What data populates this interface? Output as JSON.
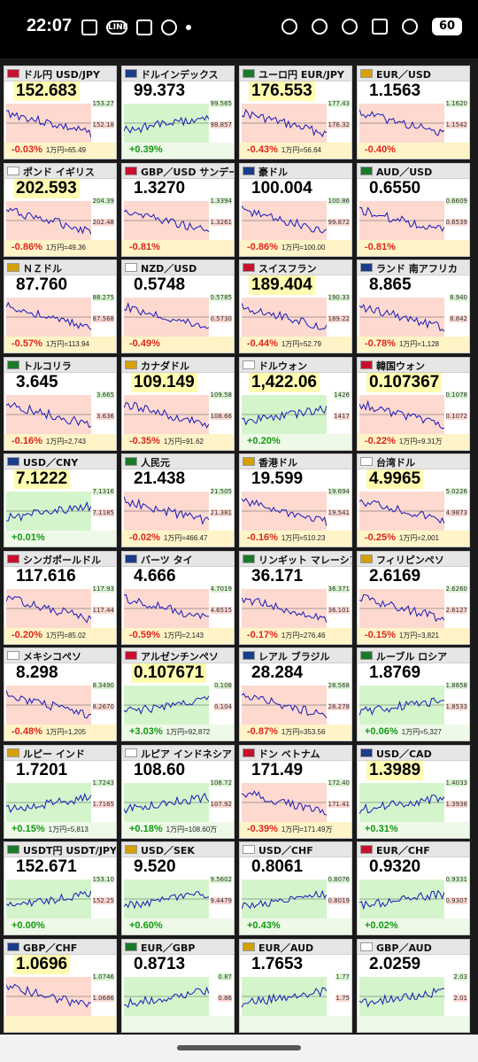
{
  "status_bar": {
    "time": "22:07",
    "battery": "60",
    "left_icons": [
      "news-icon",
      "line-icon",
      "copy-icon",
      "jaion-icon",
      "dot-icon"
    ],
    "right_icons": [
      "location-icon",
      "mute-icon",
      "dnd-icon",
      "signal-icon",
      "wifi-icon"
    ]
  },
  "colors": {
    "down": "#e0241a",
    "up": "#109a10",
    "highlight": "#fffbb0"
  },
  "tiles": [
    {
      "name": "ドル円 USD/JPY",
      "price": "152.683",
      "highlight": true,
      "change": "-0.03%",
      "sub": "1万円=65.49",
      "trend": "down",
      "hi": "153.27",
      "lo": "152.18"
    },
    {
      "name": "ドルインデックス",
      "price": "99.373",
      "highlight": false,
      "change": "+0.39%",
      "sub": "",
      "trend": "up",
      "hi": "99.565",
      "lo": "98.857"
    },
    {
      "name": "ユーロ円 EUR/JPY",
      "price": "176.553",
      "highlight": true,
      "change": "-0.43%",
      "sub": "1万円=56.64",
      "trend": "down",
      "hi": "177.43",
      "lo": "176.32"
    },
    {
      "name": "EUR／USD",
      "price": "1.1563",
      "highlight": false,
      "change": "-0.40%",
      "sub": "",
      "trend": "down",
      "hi": "1.1620",
      "lo": "1.1542"
    },
    {
      "name": "ポンド イギリス",
      "price": "202.593",
      "highlight": true,
      "change": "-0.86%",
      "sub": "1万円=49.36",
      "trend": "down",
      "hi": "204.39",
      "lo": "202.48"
    },
    {
      "name": "GBP／USD サンデー",
      "price": "1.3270",
      "highlight": false,
      "change": "-0.81%",
      "sub": "",
      "trend": "down",
      "hi": "1.3394",
      "lo": "1.3261"
    },
    {
      "name": "豪ドル",
      "price": "100.004",
      "highlight": false,
      "change": "-0.86%",
      "sub": "1万円=100.00",
      "trend": "down",
      "hi": "100.86",
      "lo": "99.872"
    },
    {
      "name": "AUD／USD",
      "price": "0.6550",
      "highlight": false,
      "change": "-0.81%",
      "sub": "",
      "trend": "down",
      "hi": "0.6609",
      "lo": "0.6539"
    },
    {
      "name": "ＮＺドル",
      "price": "87.760",
      "highlight": false,
      "change": "-0.57%",
      "sub": "1万円=113.94",
      "trend": "down",
      "hi": "88.275",
      "lo": "87.568"
    },
    {
      "name": "NZD／USD",
      "price": "0.5748",
      "highlight": false,
      "change": "-0.49%",
      "sub": "",
      "trend": "down",
      "hi": "0.5785",
      "lo": "0.5730"
    },
    {
      "name": "スイスフラン",
      "price": "189.404",
      "highlight": true,
      "change": "-0.44%",
      "sub": "1万円=52.79",
      "trend": "down",
      "hi": "190.33",
      "lo": "189.22"
    },
    {
      "name": "ランド 南アフリカ",
      "price": "8.865",
      "highlight": false,
      "change": "-0.78%",
      "sub": "1万円=1,128",
      "trend": "down",
      "hi": "8.940",
      "lo": "8.842"
    },
    {
      "name": "トルコリラ",
      "price": "3.645",
      "highlight": false,
      "change": "-0.16%",
      "sub": "1万円=2,743",
      "trend": "down",
      "hi": "3.665",
      "lo": "3.636"
    },
    {
      "name": "カナダドル",
      "price": "109.149",
      "highlight": true,
      "change": "-0.35%",
      "sub": "1万円=91.62",
      "trend": "down",
      "hi": "109.58",
      "lo": "108.66"
    },
    {
      "name": "ドルウォン",
      "price": "1,422.06",
      "highlight": true,
      "change": "+0.20%",
      "sub": "",
      "trend": "up",
      "hi": "1426",
      "lo": "1417"
    },
    {
      "name": "韓国ウォン",
      "price": "0.107367",
      "highlight": true,
      "change": "-0.22%",
      "sub": "1万円=9.31万",
      "trend": "down",
      "hi": "0.1078",
      "lo": "0.1072"
    },
    {
      "name": "USD／CNY",
      "price": "7.1222",
      "highlight": true,
      "change": "+0.01%",
      "sub": "",
      "trend": "up",
      "hi": "7.1316",
      "lo": "7.1185"
    },
    {
      "name": "人民元",
      "price": "21.438",
      "highlight": false,
      "change": "-0.02%",
      "sub": "1万円=466.47",
      "trend": "down",
      "hi": "21.505",
      "lo": "21.381"
    },
    {
      "name": "香港ドル",
      "price": "19.599",
      "highlight": false,
      "change": "-0.16%",
      "sub": "1万円=510.23",
      "trend": "down",
      "hi": "19.694",
      "lo": "19.541"
    },
    {
      "name": "台湾ドル",
      "price": "4.9965",
      "highlight": true,
      "change": "-0.25%",
      "sub": "1万円=2,001",
      "trend": "down",
      "hi": "5.0226",
      "lo": "4.9873"
    },
    {
      "name": "シンガポールドル",
      "price": "117.616",
      "highlight": false,
      "change": "-0.20%",
      "sub": "1万円=85.02",
      "trend": "down",
      "hi": "117.93",
      "lo": "117.44"
    },
    {
      "name": "バーツ タイ",
      "price": "4.666",
      "highlight": false,
      "change": "-0.59%",
      "sub": "1万円=2,143",
      "trend": "down",
      "hi": "4.7019",
      "lo": "4.6515"
    },
    {
      "name": "リンギット マレーシア",
      "price": "36.171",
      "highlight": false,
      "change": "-0.17%",
      "sub": "1万円=276.46",
      "trend": "down",
      "hi": "36.371",
      "lo": "36.101"
    },
    {
      "name": "フィリピンペソ",
      "price": "2.6169",
      "highlight": false,
      "change": "-0.15%",
      "sub": "1万円=3,821",
      "trend": "down",
      "hi": "2.6260",
      "lo": "2.6127"
    },
    {
      "name": "メキシコペソ",
      "price": "8.298",
      "highlight": false,
      "change": "-0.48%",
      "sub": "1万円=1,205",
      "trend": "down",
      "hi": "8.3490",
      "lo": "8.2670"
    },
    {
      "name": "アルゼンチンペソ",
      "price": "0.107671",
      "highlight": true,
      "change": "+3.03%",
      "sub": "1万円=92,872",
      "trend": "up",
      "hi": "0.108",
      "lo": "0.104"
    },
    {
      "name": "レアル ブラジル",
      "price": "28.284",
      "highlight": false,
      "change": "-0.87%",
      "sub": "1万円=353.56",
      "trend": "down",
      "hi": "28.568",
      "lo": "28.278"
    },
    {
      "name": "ルーブル ロシア",
      "price": "1.8769",
      "highlight": false,
      "change": "+0.06%",
      "sub": "1万円=5,327",
      "trend": "up",
      "hi": "1.8858",
      "lo": "1.8533"
    },
    {
      "name": "ルピー インド",
      "price": "1.7201",
      "highlight": false,
      "change": "+0.15%",
      "sub": "1万円=5,813",
      "trend": "up",
      "hi": "1.7243",
      "lo": "1.7165"
    },
    {
      "name": "ルピア インドネシア",
      "price": "108.60",
      "highlight": false,
      "change": "+0.18%",
      "sub": "1万円=108.60万",
      "trend": "up",
      "hi": "108.72",
      "lo": "107.92"
    },
    {
      "name": "ドン ベトナム",
      "price": "171.49",
      "highlight": false,
      "change": "-0.39%",
      "sub": "1万円=171.49万",
      "trend": "down",
      "hi": "172.40",
      "lo": "171.41"
    },
    {
      "name": "USD／CAD",
      "price": "1.3989",
      "highlight": true,
      "change": "+0.31%",
      "sub": "",
      "trend": "up",
      "hi": "1.4033",
      "lo": "1.3938"
    },
    {
      "name": "USDT円 USDT/JPY",
      "price": "152.671",
      "highlight": false,
      "change": "+0.00%",
      "sub": "",
      "trend": "up",
      "hi": "153.10",
      "lo": "152.25"
    },
    {
      "name": "USD／SEK",
      "price": "9.520",
      "highlight": false,
      "change": "+0.60%",
      "sub": "",
      "trend": "up",
      "hi": "9.5602",
      "lo": "9.4479"
    },
    {
      "name": "USD／CHF",
      "price": "0.8061",
      "highlight": false,
      "change": "+0.43%",
      "sub": "",
      "trend": "up",
      "hi": "0.8076",
      "lo": "0.8019"
    },
    {
      "name": "EUR／CHF",
      "price": "0.9320",
      "highlight": false,
      "change": "+0.02%",
      "sub": "",
      "trend": "up",
      "hi": "0.9331",
      "lo": "0.9307"
    },
    {
      "name": "GBP／CHF",
      "price": "1.0696",
      "highlight": true,
      "change": "",
      "sub": "",
      "trend": "down",
      "hi": "1.0746",
      "lo": "1.0686"
    },
    {
      "name": "EUR／GBP",
      "price": "0.8713",
      "highlight": false,
      "change": "",
      "sub": "",
      "trend": "up",
      "hi": "0.87",
      "lo": "0.86"
    },
    {
      "name": "EUR／AUD",
      "price": "1.7653",
      "highlight": false,
      "change": "",
      "sub": "",
      "trend": "up",
      "hi": "1.77",
      "lo": "1.75"
    },
    {
      "name": "GBP／AUD",
      "price": "2.0259",
      "highlight": false,
      "change": "",
      "sub": "",
      "trend": "up",
      "hi": "2.03",
      "lo": "2.01"
    }
  ]
}
